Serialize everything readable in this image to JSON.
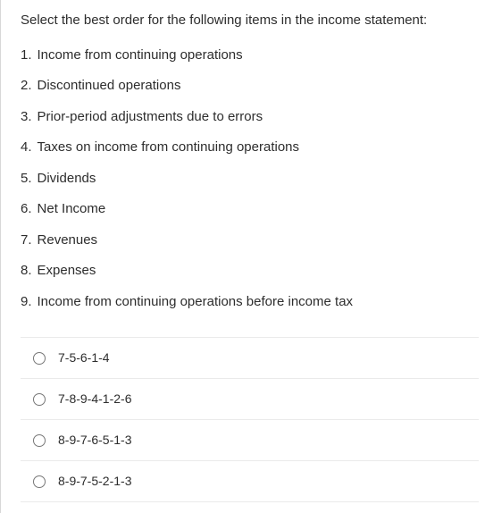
{
  "question": {
    "prompt": "Select the best order for the following items in the income statement:",
    "items": [
      {
        "num": "1.",
        "text": "Income from continuing operations"
      },
      {
        "num": "2.",
        "text": "Discontinued operations"
      },
      {
        "num": "3.",
        "text": "Prior-period adjustments due to errors"
      },
      {
        "num": "4.",
        "text": "Taxes on income from continuing operations"
      },
      {
        "num": "5.",
        "text": "Dividends"
      },
      {
        "num": "6.",
        "text": "Net Income"
      },
      {
        "num": "7.",
        "text": "Revenues"
      },
      {
        "num": "8.",
        "text": "Expenses"
      },
      {
        "num": "9.",
        "text": "Income from continuing operations before income tax"
      }
    ],
    "choices": [
      {
        "label": "7-5-6-1-4"
      },
      {
        "label": "7-8-9-4-1-2-6"
      },
      {
        "label": "8-9-7-6-5-1-3"
      },
      {
        "label": "8-9-7-5-2-1-3"
      }
    ]
  },
  "colors": {
    "text": "#2d2d2d",
    "border": "#d8d8d8",
    "divider": "#eaeaea",
    "radio_border": "#777777",
    "background": "#ffffff"
  }
}
